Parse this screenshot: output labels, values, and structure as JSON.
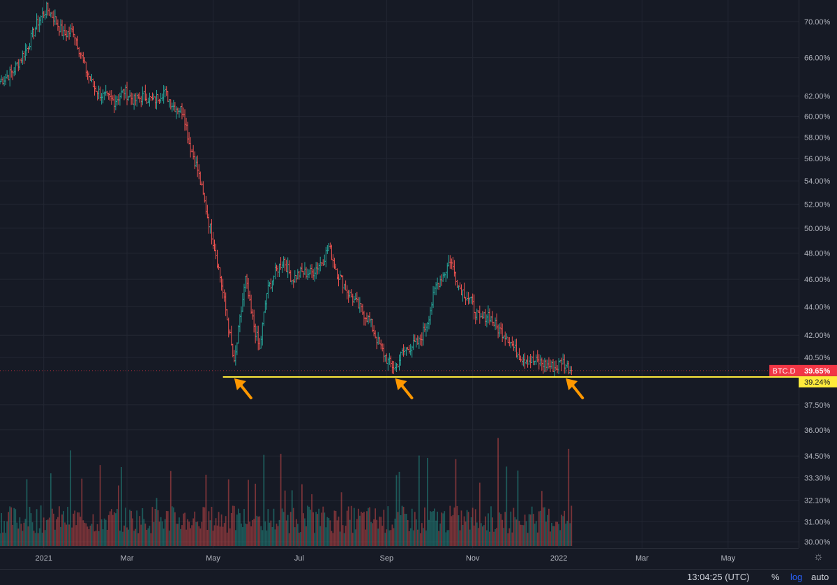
{
  "chart_data": {
    "type": "ohlc",
    "symbol": "BTC.D",
    "last_value": "39.65%",
    "support_value": "39.24%",
    "scale": "log",
    "y_ticks": [
      "70.00%",
      "66.00%",
      "62.00%",
      "60.00%",
      "58.00%",
      "56.00%",
      "54.00%",
      "52.00%",
      "50.00%",
      "48.00%",
      "46.00%",
      "44.00%",
      "42.00%",
      "40.50%",
      "37.50%",
      "36.00%",
      "34.50%",
      "33.30%",
      "32.10%",
      "31.00%",
      "30.00%"
    ],
    "y_tick_values": [
      70,
      66,
      62,
      60,
      58,
      56,
      54,
      52,
      50,
      48,
      46,
      44,
      42,
      40.5,
      37.5,
      36,
      34.5,
      33.3,
      32.1,
      31,
      30
    ],
    "x_ticks": [
      "2021",
      "Mar",
      "May",
      "Jul",
      "Sep",
      "Nov",
      "2022",
      "Mar",
      "May"
    ],
    "x_tick_dates": [
      "2021-01-01",
      "2021-03-01",
      "2021-05-01",
      "2021-07-01",
      "2021-09-01",
      "2021-11-01",
      "2022-01-01",
      "2022-03-01",
      "2022-05-01"
    ],
    "x_range": [
      "2020-12-01",
      "2022-06-20"
    ],
    "y_range": [
      29.7,
      72.5
    ],
    "series_close": [
      [
        "2020-12-01",
        63.5
      ],
      [
        "2020-12-10",
        64.5
      ],
      [
        "2020-12-20",
        67.0
      ],
      [
        "2020-12-28",
        70.0
      ],
      [
        "2021-01-03",
        71.5
      ],
      [
        "2021-01-08",
        70.5
      ],
      [
        "2021-01-15",
        68.5
      ],
      [
        "2021-01-22",
        69.0
      ],
      [
        "2021-01-30",
        65.0
      ],
      [
        "2021-02-05",
        63.0
      ],
      [
        "2021-02-12",
        62.0
      ],
      [
        "2021-02-20",
        61.5
      ],
      [
        "2021-02-27",
        62.5
      ],
      [
        "2021-03-06",
        61.5
      ],
      [
        "2021-03-13",
        62.0
      ],
      [
        "2021-03-20",
        61.5
      ],
      [
        "2021-03-27",
        62.5
      ],
      [
        "2021-04-03",
        61.0
      ],
      [
        "2021-04-10",
        60.5
      ],
      [
        "2021-04-14",
        57.5
      ],
      [
        "2021-04-20",
        55.0
      ],
      [
        "2021-04-27",
        51.0
      ],
      [
        "2021-05-03",
        48.0
      ],
      [
        "2021-05-08",
        45.0
      ],
      [
        "2021-05-12",
        42.5
      ],
      [
        "2021-05-16",
        40.0
      ],
      [
        "2021-05-20",
        43.0
      ],
      [
        "2021-05-24",
        46.0
      ],
      [
        "2021-05-28",
        43.5
      ],
      [
        "2021-06-03",
        41.0
      ],
      [
        "2021-06-08",
        45.0
      ],
      [
        "2021-06-14",
        46.5
      ],
      [
        "2021-06-20",
        47.5
      ],
      [
        "2021-06-26",
        46.0
      ],
      [
        "2021-07-02",
        46.5
      ],
      [
        "2021-07-10",
        46.5
      ],
      [
        "2021-07-18",
        47.5
      ],
      [
        "2021-07-22",
        48.5
      ],
      [
        "2021-07-28",
        46.5
      ],
      [
        "2021-08-05",
        45.0
      ],
      [
        "2021-08-12",
        44.0
      ],
      [
        "2021-08-20",
        43.0
      ],
      [
        "2021-08-26",
        41.5
      ],
      [
        "2021-09-02",
        40.2
      ],
      [
        "2021-09-07",
        39.8
      ],
      [
        "2021-09-12",
        40.8
      ],
      [
        "2021-09-17",
        41.2
      ],
      [
        "2021-09-24",
        41.5
      ],
      [
        "2021-09-30",
        43.0
      ],
      [
        "2021-10-06",
        45.5
      ],
      [
        "2021-10-12",
        46.5
      ],
      [
        "2021-10-16",
        47.5
      ],
      [
        "2021-10-22",
        45.5
      ],
      [
        "2021-10-30",
        44.5
      ],
      [
        "2021-11-06",
        43.0
      ],
      [
        "2021-11-12",
        43.5
      ],
      [
        "2021-11-18",
        42.5
      ],
      [
        "2021-11-25",
        42.0
      ],
      [
        "2021-12-01",
        41.0
      ],
      [
        "2021-12-06",
        40.5
      ],
      [
        "2021-12-12",
        40.3
      ],
      [
        "2021-12-18",
        40.2
      ],
      [
        "2021-12-24",
        40.0
      ],
      [
        "2021-12-30",
        39.8
      ],
      [
        "2022-01-03",
        40.3
      ],
      [
        "2022-01-06",
        40.0
      ],
      [
        "2022-01-10",
        39.65
      ]
    ],
    "annotations": {
      "support_line_start": "2021-05-08",
      "arrow_dates": [
        "2021-05-16",
        "2021-09-07",
        "2022-01-06"
      ]
    },
    "colors": {
      "up": "#26a69a",
      "down": "#ef5350",
      "support_line": "#ffeb3b",
      "arrow": "#ff9800",
      "badge_red": "#f23645",
      "badge_yellow": "#ffeb3b",
      "grid": "#232733",
      "background": "#161a25"
    }
  },
  "status": {
    "time": "13:04:25 (UTC)",
    "percent": "%",
    "log": "log",
    "auto": "auto"
  },
  "icons": {
    "settings": "gear-icon"
  }
}
